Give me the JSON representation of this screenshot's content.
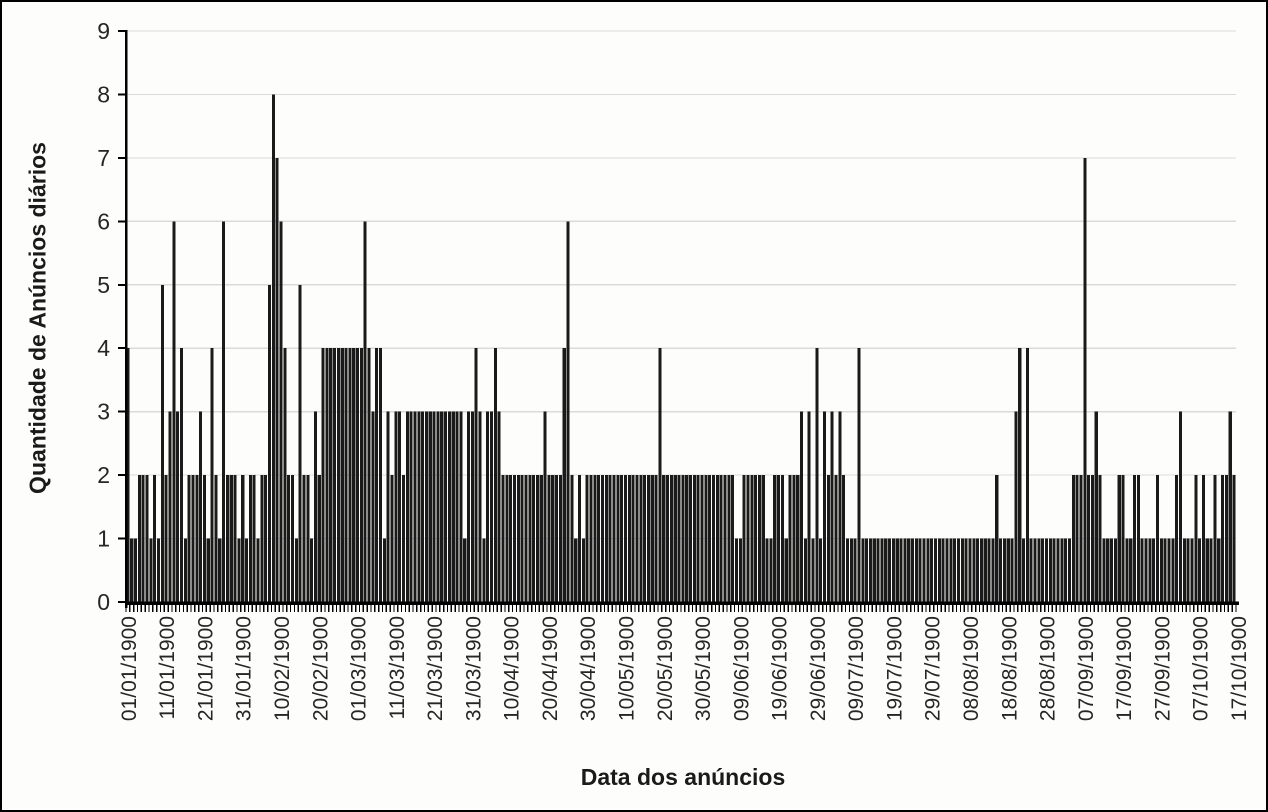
{
  "chart_data": {
    "type": "bar",
    "title": "",
    "xlabel": "Data dos anúncios",
    "ylabel": "Quantidade de Anúncios diários",
    "ylim": [
      0,
      9
    ],
    "y_ticks": [
      0,
      1,
      2,
      3,
      4,
      5,
      6,
      7,
      8,
      9
    ],
    "grid": "horizontal",
    "legend": "none",
    "bar_color": "#1a1a1a",
    "grid_color": "#dadada",
    "axis_color": "#1a1a1a",
    "text_color": "#262626",
    "background_color": "#fdfdfb",
    "x_tick_interval_days": 10,
    "n_days": 290,
    "x_tick_labels": [
      "01/01/1900",
      "11/01/1900",
      "21/01/1900",
      "31/01/1900",
      "10/02/1900",
      "20/02/1900",
      "01/03/1900",
      "11/03/1900",
      "21/03/1900",
      "31/03/1900",
      "10/04/1900",
      "20/04/1900",
      "30/04/1900",
      "10/05/1900",
      "20/05/1900",
      "30/05/1900",
      "09/06/1900",
      "19/06/1900",
      "29/06/1900",
      "09/07/1900",
      "19/07/1900",
      "29/07/1900",
      "08/08/1900",
      "18/08/1900",
      "28/08/1900",
      "07/09/1900",
      "17/09/1900",
      "27/09/1900",
      "07/10/1900",
      "17/10/1900"
    ],
    "values": [
      4,
      1,
      1,
      2,
      2,
      2,
      1,
      2,
      1,
      5,
      2,
      3,
      6,
      3,
      4,
      1,
      2,
      2,
      2,
      3,
      2,
      1,
      4,
      2,
      1,
      6,
      2,
      2,
      2,
      1,
      2,
      1,
      2,
      2,
      1,
      2,
      2,
      5,
      8,
      7,
      6,
      4,
      2,
      2,
      1,
      5,
      2,
      2,
      1,
      3,
      2,
      4,
      4,
      4,
      4,
      4,
      4,
      4,
      4,
      4,
      4,
      4,
      6,
      4,
      3,
      4,
      4,
      1,
      3,
      2,
      3,
      3,
      2,
      3,
      3,
      3,
      3,
      3,
      3,
      3,
      3,
      3,
      3,
      3,
      3,
      3,
      3,
      3,
      1,
      3,
      3,
      4,
      3,
      1,
      3,
      3,
      4,
      3,
      2,
      2,
      2,
      2,
      2,
      2,
      2,
      2,
      2,
      2,
      2,
      3,
      2,
      2,
      2,
      2,
      4,
      6,
      2,
      1,
      2,
      1,
      2,
      2,
      2,
      2,
      2,
      2,
      2,
      2,
      2,
      2,
      2,
      2,
      2,
      2,
      2,
      2,
      2,
      2,
      2,
      4,
      2,
      2,
      2,
      2,
      2,
      2,
      2,
      2,
      2,
      2,
      2,
      2,
      2,
      2,
      2,
      2,
      2,
      2,
      2,
      1,
      1,
      2,
      2,
      2,
      2,
      2,
      2,
      1,
      1,
      2,
      2,
      2,
      1,
      2,
      2,
      2,
      3,
      1,
      3,
      1,
      4,
      1,
      3,
      2,
      3,
      2,
      3,
      2,
      1,
      1,
      1,
      4,
      1,
      1,
      1,
      1,
      1,
      1,
      1,
      1,
      1,
      1,
      1,
      1,
      1,
      1,
      1,
      1,
      1,
      1,
      1,
      1,
      1,
      1,
      1,
      1,
      1,
      1,
      1,
      1,
      1,
      1,
      1,
      1,
      1,
      1,
      1,
      2,
      1,
      1,
      1,
      1,
      3,
      4,
      1,
      4,
      1,
      1,
      1,
      1,
      1,
      1,
      1,
      1,
      1,
      1,
      1,
      2,
      2,
      2,
      7,
      2,
      2,
      3,
      2,
      1,
      1,
      1,
      1,
      2,
      2,
      1,
      1,
      2,
      2,
      1,
      1,
      1,
      1,
      2,
      1,
      1,
      1,
      1,
      2,
      3,
      1,
      1,
      1,
      2,
      1,
      2,
      1,
      1,
      2,
      1,
      2,
      2,
      3,
      2
    ]
  }
}
